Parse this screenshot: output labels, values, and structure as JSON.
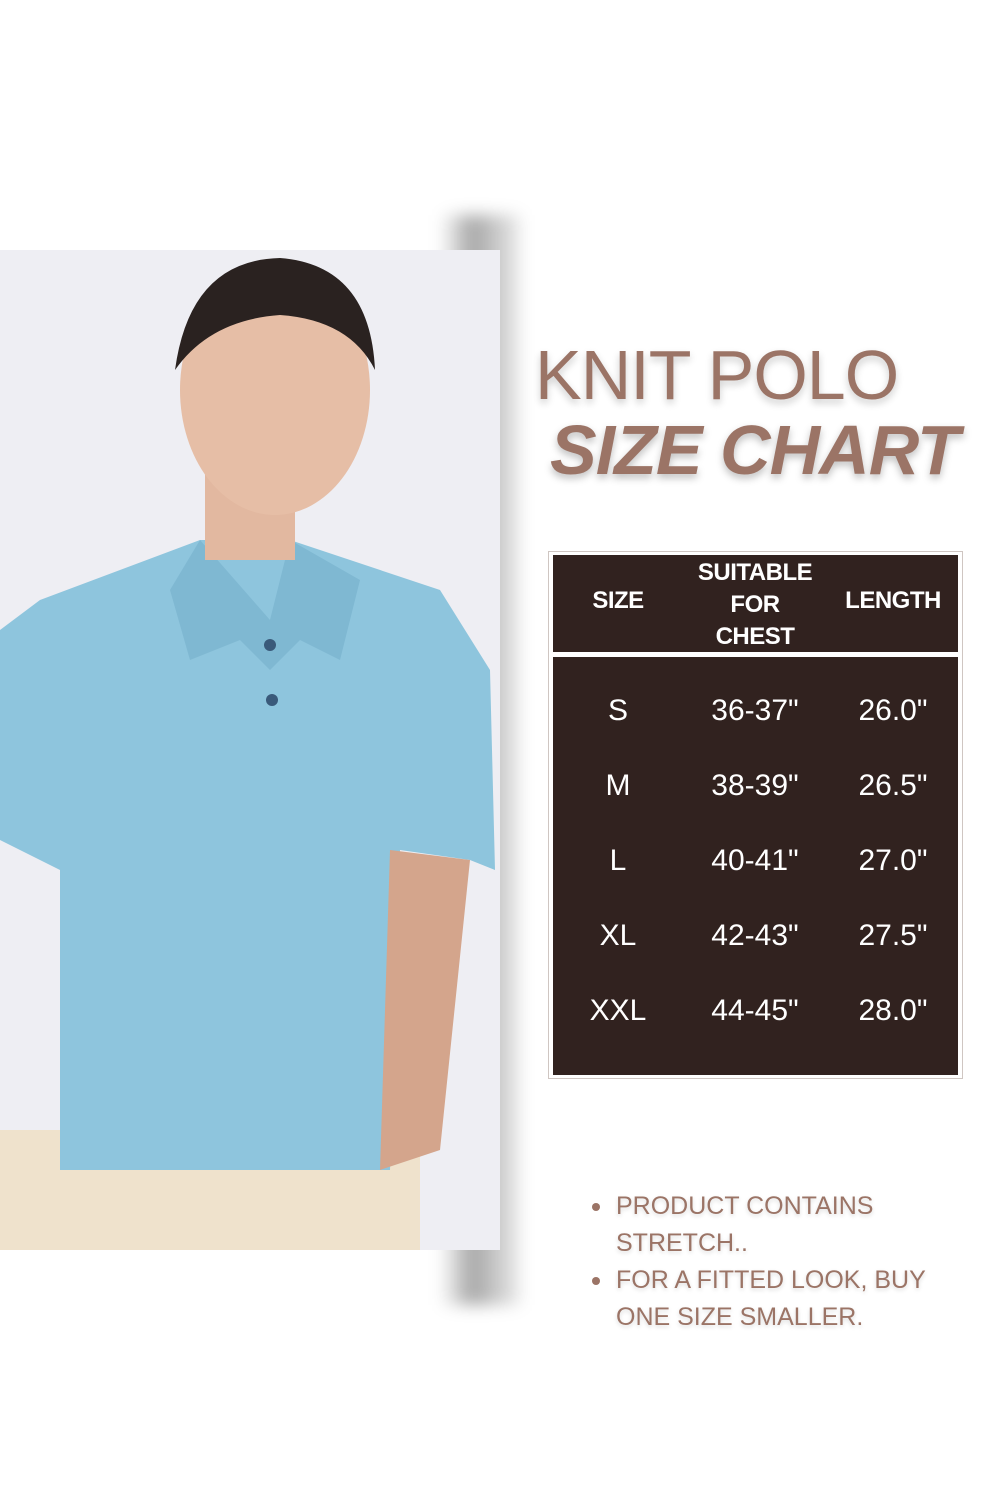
{
  "title": {
    "line1": "KNIT POLO",
    "line2": "SIZE CHART"
  },
  "colors": {
    "accent": "#9b7466",
    "table_bg": "#31221f",
    "shirt": "#8ec5dd"
  },
  "photo": {
    "subject": "model wearing light blue knit polo"
  },
  "size_table": {
    "headers": [
      "SIZE",
      "SUITABLE FOR CHEST",
      "LENGTH"
    ],
    "header_lines": {
      "chest": [
        "SUITABLE",
        "FOR",
        "CHEST"
      ]
    },
    "rows": [
      [
        "S",
        "36-37\"",
        "26.0\""
      ],
      [
        "M",
        "38-39\"",
        "26.5\""
      ],
      [
        "L",
        "40-41\"",
        "27.0\""
      ],
      [
        "XL",
        "42-43\"",
        "27.5\""
      ],
      [
        "XXL",
        "44-45\"",
        "28.0\""
      ]
    ]
  },
  "notes": [
    "PRODUCT CONTAINS STRETCH..",
    "FOR A FITTED LOOK, BUY ONE SIZE SMALLER."
  ]
}
